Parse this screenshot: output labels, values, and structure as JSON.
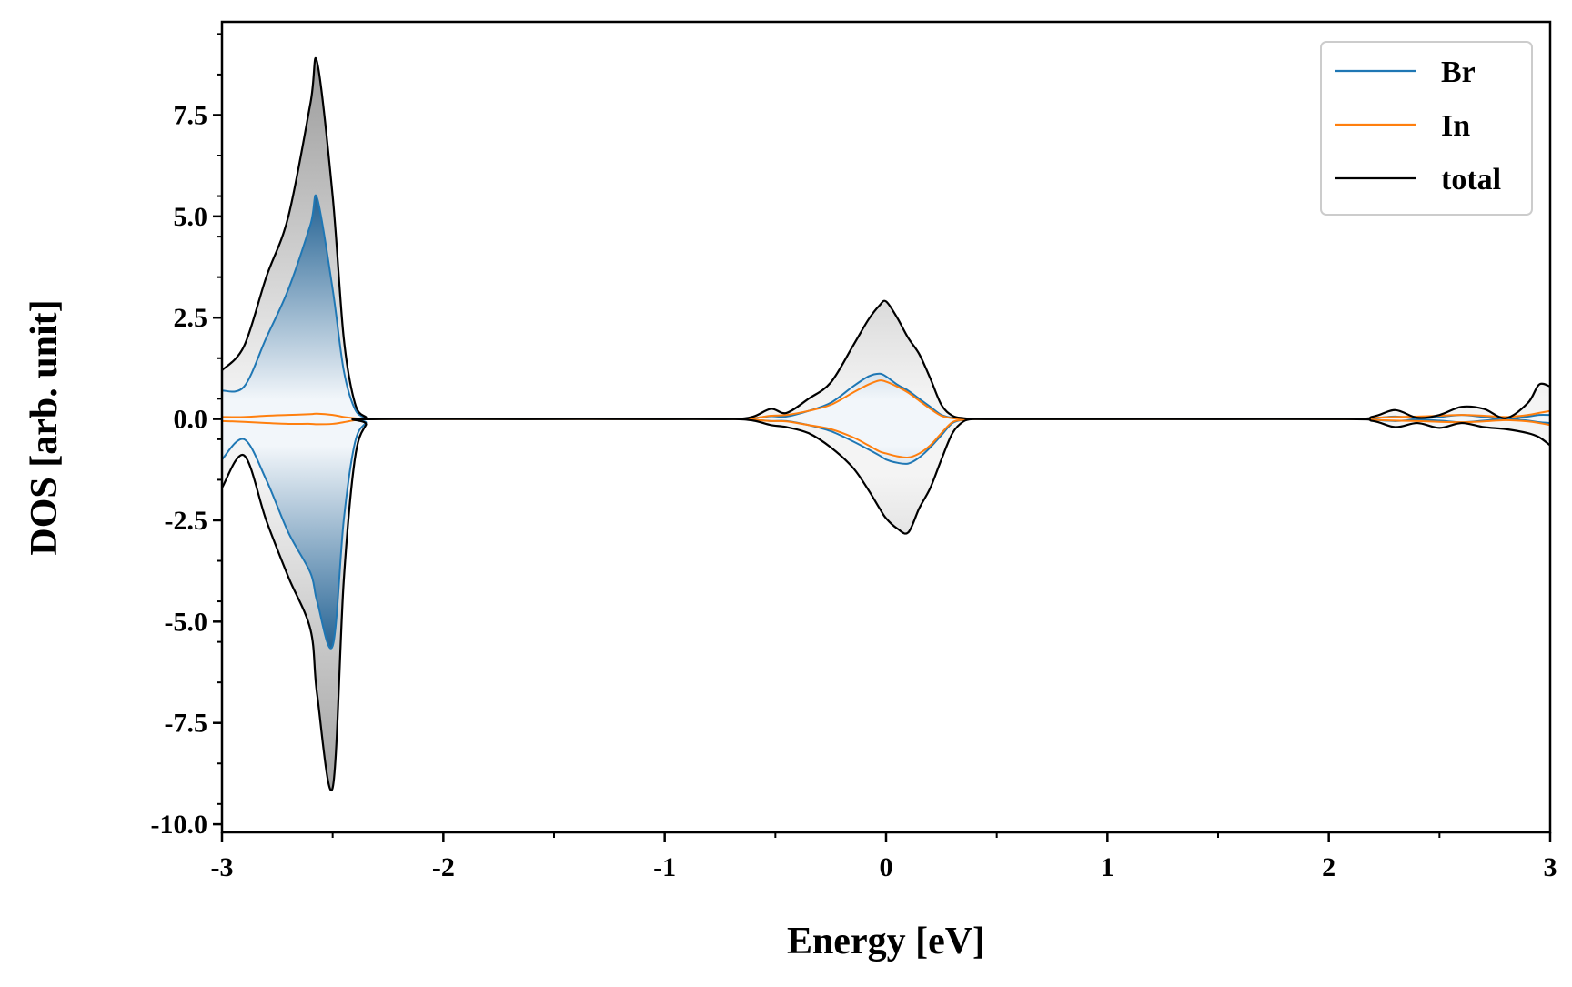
{
  "chart_data": {
    "type": "area",
    "title": "",
    "xlabel": "Energy [eV]",
    "ylabel": "DOS [arb. unit]",
    "xlim": [
      -3,
      3
    ],
    "ylim": [
      -10.2,
      9.8
    ],
    "x_ticks": [
      -3,
      -2,
      -1,
      0,
      1,
      2,
      3
    ],
    "x_tick_labels": [
      "-3",
      "-2",
      "-1",
      "0",
      "1",
      "2",
      "3"
    ],
    "y_ticks": [
      7.5,
      5.0,
      2.5,
      0.0,
      -2.5,
      -5.0,
      -7.5,
      -10.0
    ],
    "y_tick_labels": [
      "7.5",
      "5.0",
      "2.5",
      "0.0",
      "-2.5",
      "-5.0",
      "-7.5",
      "-10.0"
    ],
    "grid": false,
    "legend_position": "top-right",
    "spin_polarized": true,
    "x": [
      -3.0,
      -2.9,
      -2.8,
      -2.7,
      -2.6,
      -2.57,
      -2.5,
      -2.45,
      -2.4,
      -2.35,
      -2.3,
      -1.0,
      -0.7,
      -0.6,
      -0.52,
      -0.45,
      -0.35,
      -0.25,
      -0.15,
      -0.08,
      -0.03,
      0.0,
      0.05,
      0.1,
      0.15,
      0.2,
      0.25,
      0.3,
      0.35,
      0.4,
      0.45,
      1.0,
      2.05,
      2.2,
      2.3,
      2.4,
      2.5,
      2.6,
      2.7,
      2.8,
      2.9,
      2.95,
      3.0
    ],
    "series": [
      {
        "name": "Br",
        "color": "#1f77b4",
        "up": [
          0.7,
          0.8,
          2.0,
          3.2,
          4.8,
          5.45,
          3.2,
          1.2,
          0.25,
          0.04,
          0.0,
          0.0,
          0.0,
          0.02,
          0.07,
          0.06,
          0.2,
          0.4,
          0.8,
          1.05,
          1.12,
          1.05,
          0.85,
          0.7,
          0.5,
          0.3,
          0.1,
          0.03,
          0.01,
          0.0,
          0.0,
          0.0,
          0.0,
          0.02,
          0.06,
          0.01,
          0.05,
          0.1,
          0.05,
          0.0,
          0.06,
          0.1,
          0.1
        ],
        "down": [
          -1.0,
          -0.5,
          -1.5,
          -2.8,
          -3.8,
          -4.5,
          -5.6,
          -2.5,
          -0.6,
          -0.1,
          0.0,
          0.0,
          0.0,
          -0.02,
          -0.05,
          -0.05,
          -0.15,
          -0.3,
          -0.55,
          -0.75,
          -0.9,
          -1.0,
          -1.08,
          -1.1,
          -0.95,
          -0.7,
          -0.4,
          -0.1,
          -0.02,
          0.0,
          0.0,
          0.0,
          0.0,
          -0.02,
          -0.05,
          -0.02,
          -0.04,
          -0.08,
          -0.04,
          0.0,
          -0.04,
          -0.08,
          -0.1
        ]
      },
      {
        "name": "In",
        "color": "#ff7f0e",
        "up": [
          0.05,
          0.05,
          0.08,
          0.1,
          0.12,
          0.13,
          0.1,
          0.05,
          0.02,
          0.0,
          0.0,
          0.0,
          0.0,
          0.02,
          0.08,
          0.1,
          0.2,
          0.35,
          0.65,
          0.85,
          0.95,
          0.92,
          0.8,
          0.65,
          0.45,
          0.25,
          0.08,
          0.02,
          0.0,
          0.0,
          0.0,
          0.0,
          0.0,
          0.03,
          0.05,
          0.06,
          0.08,
          0.1,
          0.08,
          0.05,
          0.1,
          0.15,
          0.2
        ],
        "down": [
          -0.05,
          -0.07,
          -0.1,
          -0.12,
          -0.12,
          -0.13,
          -0.12,
          -0.08,
          -0.03,
          0.0,
          0.0,
          0.0,
          0.0,
          -0.02,
          -0.05,
          -0.06,
          -0.15,
          -0.25,
          -0.45,
          -0.65,
          -0.8,
          -0.85,
          -0.92,
          -0.95,
          -0.85,
          -0.65,
          -0.35,
          -0.08,
          -0.02,
          0.0,
          0.0,
          0.0,
          0.0,
          -0.02,
          -0.04,
          -0.05,
          -0.07,
          -0.08,
          -0.06,
          -0.03,
          -0.06,
          -0.1,
          -0.15
        ]
      },
      {
        "name": "total",
        "color": "#000000",
        "up": [
          1.2,
          1.8,
          3.5,
          5.0,
          7.8,
          8.8,
          5.5,
          2.0,
          0.4,
          0.05,
          0.0,
          0.0,
          0.0,
          0.06,
          0.25,
          0.15,
          0.5,
          0.9,
          1.8,
          2.45,
          2.8,
          2.9,
          2.5,
          2.0,
          1.6,
          1.0,
          0.35,
          0.08,
          0.02,
          0.0,
          0.0,
          0.0,
          0.0,
          0.06,
          0.22,
          0.03,
          0.1,
          0.3,
          0.25,
          0.02,
          0.4,
          0.85,
          0.8
        ],
        "down": [
          -1.7,
          -0.9,
          -2.5,
          -3.9,
          -5.2,
          -6.8,
          -9.1,
          -4.0,
          -1.0,
          -0.15,
          0.0,
          0.0,
          0.0,
          -0.04,
          -0.15,
          -0.2,
          -0.35,
          -0.7,
          -1.2,
          -1.75,
          -2.2,
          -2.45,
          -2.7,
          -2.8,
          -2.2,
          -1.7,
          -1.0,
          -0.35,
          -0.06,
          0.0,
          0.0,
          0.0,
          0.0,
          -0.05,
          -0.2,
          -0.1,
          -0.22,
          -0.1,
          -0.2,
          -0.25,
          -0.35,
          -0.45,
          -0.65
        ]
      }
    ]
  }
}
